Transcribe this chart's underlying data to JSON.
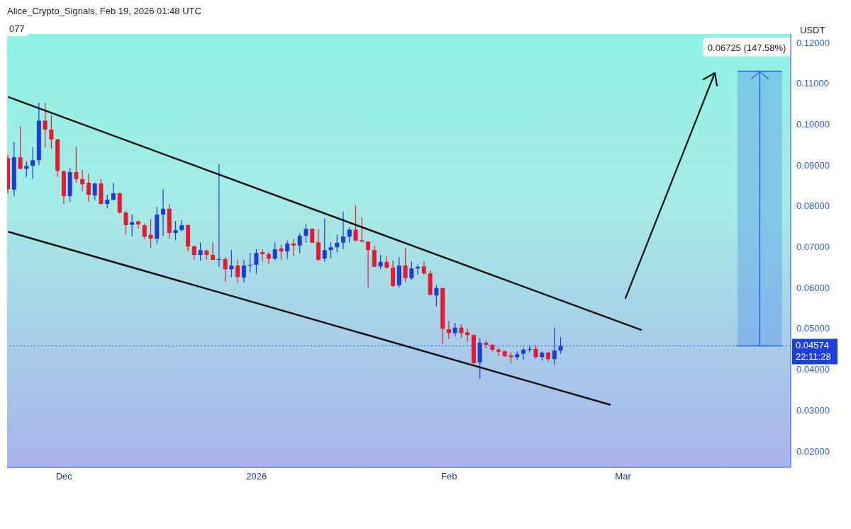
{
  "chart_data": {
    "type": "candlestick",
    "title": "Alice_Crypto_Signals, Feb 19, 2026 01:48 UTC",
    "ylabel": "USDT",
    "x": [
      "2025-11-22",
      "2025-11-23",
      "2025-11-24",
      "2025-11-25",
      "2025-11-26",
      "2025-11-27",
      "2025-11-28",
      "2025-11-29",
      "2025-11-30",
      "2025-12-01",
      "2025-12-02",
      "2025-12-03",
      "2025-12-04",
      "2025-12-05",
      "2025-12-06",
      "2025-12-07",
      "2025-12-08",
      "2025-12-09",
      "2025-12-10",
      "2025-12-11",
      "2025-12-12",
      "2025-12-13",
      "2025-12-14",
      "2025-12-15",
      "2025-12-16",
      "2025-12-17",
      "2025-12-18",
      "2025-12-19",
      "2025-12-20",
      "2025-12-21",
      "2025-12-22",
      "2025-12-23",
      "2025-12-24",
      "2025-12-25",
      "2025-12-26",
      "2025-12-27",
      "2025-12-28",
      "2025-12-29",
      "2025-12-30",
      "2025-12-31",
      "2026-01-01",
      "2026-01-02",
      "2026-01-03",
      "2026-01-04",
      "2026-01-05",
      "2026-01-06",
      "2026-01-07",
      "2026-01-08",
      "2026-01-09",
      "2026-01-10",
      "2026-01-11",
      "2026-01-12",
      "2026-01-13",
      "2026-01-14",
      "2026-01-15",
      "2026-01-16",
      "2026-01-17",
      "2026-01-18",
      "2026-01-19",
      "2026-01-20",
      "2026-01-21",
      "2026-01-22",
      "2026-01-23",
      "2026-01-24",
      "2026-01-25",
      "2026-01-26",
      "2026-01-27",
      "2026-01-28",
      "2026-01-29",
      "2026-01-30",
      "2026-01-31",
      "2026-02-01",
      "2026-02-02",
      "2026-02-03",
      "2026-02-04",
      "2026-02-05",
      "2026-02-06",
      "2026-02-07",
      "2026-02-08",
      "2026-02-09",
      "2026-02-10",
      "2026-02-11",
      "2026-02-12",
      "2026-02-13",
      "2026-02-14",
      "2026-02-15",
      "2026-02-16",
      "2026-02-17",
      "2026-02-18",
      "2026-02-19"
    ],
    "ohlc": [
      [
        0.0917,
        0.0925,
        0.083,
        0.0841
      ],
      [
        0.084,
        0.0957,
        0.0824,
        0.0919
      ],
      [
        0.0919,
        0.0995,
        0.0889,
        0.0891
      ],
      [
        0.0891,
        0.091,
        0.0871,
        0.0898
      ],
      [
        0.0898,
        0.0944,
        0.0866,
        0.0912
      ],
      [
        0.0912,
        0.1053,
        0.09,
        0.1009
      ],
      [
        0.1009,
        0.1053,
        0.0943,
        0.0987
      ],
      [
        0.0987,
        0.1023,
        0.094,
        0.0963
      ],
      [
        0.0963,
        0.0963,
        0.0871,
        0.0886
      ],
      [
        0.0885,
        0.0887,
        0.0805,
        0.0824
      ],
      [
        0.0824,
        0.0893,
        0.081,
        0.0883
      ],
      [
        0.0883,
        0.0945,
        0.0857,
        0.0866
      ],
      [
        0.0866,
        0.0888,
        0.0836,
        0.0853
      ],
      [
        0.0857,
        0.0879,
        0.081,
        0.0827
      ],
      [
        0.0826,
        0.0857,
        0.0815,
        0.0855
      ],
      [
        0.0855,
        0.0866,
        0.0803,
        0.0805
      ],
      [
        0.0805,
        0.0827,
        0.0794,
        0.0815
      ],
      [
        0.0815,
        0.0857,
        0.0813,
        0.0831
      ],
      [
        0.0831,
        0.0833,
        0.0781,
        0.0784
      ],
      [
        0.0784,
        0.0788,
        0.073,
        0.0753
      ],
      [
        0.0754,
        0.0779,
        0.0725,
        0.076
      ],
      [
        0.0762,
        0.0764,
        0.0744,
        0.0755
      ],
      [
        0.0753,
        0.0757,
        0.0719,
        0.0725
      ],
      [
        0.0729,
        0.0767,
        0.0697,
        0.072
      ],
      [
        0.072,
        0.0798,
        0.0708,
        0.0779
      ],
      [
        0.0779,
        0.0841,
        0.0727,
        0.0793
      ],
      [
        0.0793,
        0.0805,
        0.072,
        0.0734
      ],
      [
        0.0734,
        0.0763,
        0.0716,
        0.0741
      ],
      [
        0.0741,
        0.0765,
        0.0737,
        0.0753
      ],
      [
        0.0753,
        0.0755,
        0.0689,
        0.0701
      ],
      [
        0.0701,
        0.0703,
        0.0668,
        0.068
      ],
      [
        0.068,
        0.0711,
        0.0666,
        0.0692
      ],
      [
        0.069,
        0.0694,
        0.0668,
        0.068
      ],
      [
        0.068,
        0.071,
        0.0668,
        0.0668
      ],
      [
        0.0668,
        0.0902,
        0.0651,
        0.067
      ],
      [
        0.067,
        0.0675,
        0.0614,
        0.0645
      ],
      [
        0.0645,
        0.0692,
        0.0626,
        0.0654
      ],
      [
        0.0654,
        0.0668,
        0.0611,
        0.0626
      ],
      [
        0.0625,
        0.0668,
        0.0613,
        0.0654
      ],
      [
        0.0654,
        0.0685,
        0.0637,
        0.0656
      ],
      [
        0.0656,
        0.0694,
        0.0634,
        0.0685
      ],
      [
        0.0687,
        0.0694,
        0.0664,
        0.0682
      ],
      [
        0.0682,
        0.0687,
        0.0658,
        0.0671
      ],
      [
        0.0671,
        0.0711,
        0.0667,
        0.0694
      ],
      [
        0.0696,
        0.0705,
        0.0667,
        0.0689
      ],
      [
        0.0689,
        0.0716,
        0.067,
        0.0708
      ],
      [
        0.0708,
        0.072,
        0.0677,
        0.0703
      ],
      [
        0.0703,
        0.0734,
        0.0684,
        0.0727
      ],
      [
        0.0727,
        0.0756,
        0.071,
        0.0744
      ],
      [
        0.0744,
        0.0745,
        0.0709,
        0.071
      ],
      [
        0.0711,
        0.0744,
        0.0666,
        0.0668
      ],
      [
        0.0671,
        0.077,
        0.0663,
        0.0692
      ],
      [
        0.0692,
        0.0712,
        0.0671,
        0.0699
      ],
      [
        0.0699,
        0.0729,
        0.0687,
        0.071
      ],
      [
        0.071,
        0.0786,
        0.0694,
        0.0725
      ],
      [
        0.0725,
        0.0747,
        0.071,
        0.0742
      ],
      [
        0.0742,
        0.0801,
        0.0713,
        0.0715
      ],
      [
        0.0716,
        0.0772,
        0.0711,
        0.0713
      ],
      [
        0.0713,
        0.0713,
        0.06,
        0.0692
      ],
      [
        0.0692,
        0.0703,
        0.0651,
        0.0651
      ],
      [
        0.0652,
        0.068,
        0.0645,
        0.0663
      ],
      [
        0.0663,
        0.0678,
        0.0646,
        0.0649
      ],
      [
        0.0649,
        0.0666,
        0.0602,
        0.0604
      ],
      [
        0.0606,
        0.0675,
        0.06,
        0.0654
      ],
      [
        0.0654,
        0.0697,
        0.0614,
        0.0623
      ],
      [
        0.0623,
        0.0664,
        0.0618,
        0.0647
      ],
      [
        0.0647,
        0.0656,
        0.0631,
        0.0651
      ],
      [
        0.0652,
        0.0664,
        0.0631,
        0.0635
      ],
      [
        0.0635,
        0.0642,
        0.0581,
        0.0583
      ],
      [
        0.0581,
        0.0606,
        0.0554,
        0.0599
      ],
      [
        0.0599,
        0.06,
        0.0463,
        0.05
      ],
      [
        0.0498,
        0.0519,
        0.0474,
        0.0489
      ],
      [
        0.0489,
        0.0514,
        0.0481,
        0.0502
      ],
      [
        0.0502,
        0.051,
        0.0477,
        0.0489
      ],
      [
        0.0491,
        0.05,
        0.0467,
        0.0484
      ],
      [
        0.0484,
        0.0485,
        0.0413,
        0.0415
      ],
      [
        0.0417,
        0.0477,
        0.0377,
        0.0465
      ],
      [
        0.0465,
        0.0471,
        0.0451,
        0.046
      ],
      [
        0.046,
        0.0462,
        0.0443,
        0.0448
      ],
      [
        0.0448,
        0.0453,
        0.0432,
        0.0443
      ],
      [
        0.0444,
        0.0446,
        0.043,
        0.0432
      ],
      [
        0.0434,
        0.0441,
        0.0415,
        0.043
      ],
      [
        0.043,
        0.0444,
        0.0423,
        0.0437
      ],
      [
        0.0438,
        0.0453,
        0.0423,
        0.0448
      ],
      [
        0.0448,
        0.0458,
        0.0441,
        0.045
      ],
      [
        0.045,
        0.0458,
        0.0425,
        0.043
      ],
      [
        0.043,
        0.0444,
        0.0421,
        0.0441
      ],
      [
        0.0441,
        0.0443,
        0.0419,
        0.0425
      ],
      [
        0.0425,
        0.0503,
        0.0411,
        0.0446
      ],
      [
        0.0446,
        0.0479,
        0.0438,
        0.04574
      ]
    ],
    "colors": [
      "#e8192c",
      "#1f3cd6",
      "#e8192c",
      "#1f3cd6",
      "#1f3cd6",
      "#1f3cd6",
      "#e8192c",
      "#e8192c",
      "#e8192c",
      "#e8192c",
      "#1f3cd6",
      "#e8192c",
      "#e8192c",
      "#e8192c",
      "#1f3cd6",
      "#e8192c",
      "#1f3cd6",
      "#1f3cd6",
      "#e8192c",
      "#e8192c",
      "#1f3cd6",
      "#e8192c",
      "#e8192c",
      "#e8192c",
      "#1f3cd6",
      "#1f3cd6",
      "#e8192c",
      "#1f3cd6",
      "#1f3cd6",
      "#e8192c",
      "#e8192c",
      "#1f3cd6",
      "#e8192c",
      "#e8192c",
      "#1f3cd6",
      "#e8192c",
      "#1f3cd6",
      "#e8192c",
      "#1f3cd6",
      "#1f3cd6",
      "#1f3cd6",
      "#e8192c",
      "#e8192c",
      "#1f3cd6",
      "#e8192c",
      "#1f3cd6",
      "#e8192c",
      "#1f3cd6",
      "#1f3cd6",
      "#e8192c",
      "#e8192c",
      "#1f3cd6",
      "#1f3cd6",
      "#1f3cd6",
      "#1f3cd6",
      "#1f3cd6",
      "#e8192c",
      "#e8192c",
      "#e8192c",
      "#e8192c",
      "#1f3cd6",
      "#e8192c",
      "#e8192c",
      "#1f3cd6",
      "#e8192c",
      "#1f3cd6",
      "#1f3cd6",
      "#e8192c",
      "#e8192c",
      "#1f3cd6",
      "#e8192c",
      "#e8192c",
      "#1f3cd6",
      "#e8192c",
      "#e8192c",
      "#e8192c",
      "#1f3cd6",
      "#e8192c",
      "#e8192c",
      "#e8192c",
      "#e8192c",
      "#e8192c",
      "#1f3cd6",
      "#1f3cd6",
      "#1f3cd6",
      "#e8192c",
      "#1f3cd6",
      "#e8192c",
      "#1f3cd6",
      "#1f3cd6"
    ],
    "series": [
      {
        "type": "line",
        "color": "#111111",
        "x": [
          "2025-11-22",
          "2026-03-04"
        ],
        "values": [
          0.1067,
          0.0496
        ]
      },
      {
        "type": "line",
        "color": "#111111",
        "x": [
          "2025-11-22",
          "2026-02-27"
        ],
        "values": [
          0.0737,
          0.0313
        ]
      }
    ],
    "xlim": [
      "2025-11-21T20:00",
      "2026-03-28"
    ],
    "xticks": [
      {
        "value": "2025-12-01",
        "label": "Dec"
      },
      {
        "value": "2026-01-01",
        "label": "2026"
      },
      {
        "value": "2026-02-01",
        "label": "Feb"
      },
      {
        "value": "2026-03-01",
        "label": "Mar"
      }
    ],
    "ylim": [
      0.016,
      0.1221
    ],
    "yticks": [
      {
        "value": 0.02,
        "label": "0.02000"
      },
      {
        "value": 0.03,
        "label": "0.03000"
      },
      {
        "value": 0.04,
        "label": "0.04000"
      },
      {
        "value": 0.05,
        "label": "0.05000"
      },
      {
        "value": 0.06,
        "label": "0.06000"
      },
      {
        "value": 0.07,
        "label": "0.07000"
      },
      {
        "value": 0.08,
        "label": "0.08000"
      },
      {
        "value": 0.09,
        "label": "0.09000"
      },
      {
        "value": 0.1,
        "label": "0.10000"
      },
      {
        "value": 0.11,
        "label": "0.11000"
      },
      {
        "value": 0.12,
        "label": "0.12000"
      }
    ],
    "ref_lines": [
      {
        "axis": "y",
        "value": 0.04574,
        "label": "0.04574",
        "color": "#1e3fd8",
        "line_style": "dotted"
      }
    ],
    "bands": [
      {
        "axis": "y",
        "from": 0.04574,
        "to": 0.11299,
        "label": "0.06725 (147.58%)",
        "color": "#5b9be8"
      }
    ],
    "annotations": [
      "077",
      "22:11:28"
    ]
  }
}
